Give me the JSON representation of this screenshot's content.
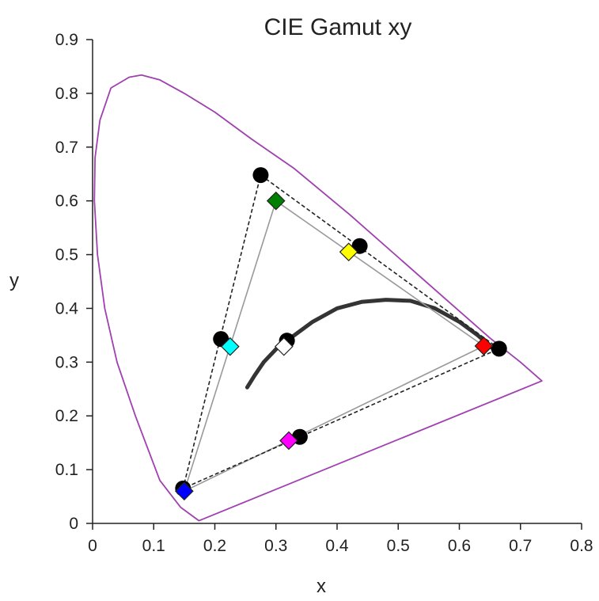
{
  "chart_data": {
    "type": "scatter",
    "title": "CIE Gamut xy",
    "xlabel": "x",
    "ylabel": "y",
    "xlim": [
      0,
      0.8
    ],
    "ylim": [
      0,
      0.9
    ],
    "x_ticks": [
      "0",
      "0.1",
      "0.2",
      "0.3",
      "0.4",
      "0.5",
      "0.6",
      "0.7",
      "0.8"
    ],
    "y_ticks": [
      "0",
      "0.1",
      "0.2",
      "0.3",
      "0.4",
      "0.5",
      "0.6",
      "0.7",
      "0.8",
      "0.9"
    ],
    "grid": false,
    "legend": "none",
    "spectral_locus": {
      "color": "#a040b0",
      "x": [
        0.174,
        0.144,
        0.11,
        0.07,
        0.04,
        0.02,
        0.008,
        0.003,
        0.004,
        0.012,
        0.03,
        0.06,
        0.08,
        0.11,
        0.15,
        0.2,
        0.26,
        0.33,
        0.42,
        0.5,
        0.58,
        0.65,
        0.7,
        0.735
      ],
      "y": [
        0.005,
        0.03,
        0.08,
        0.2,
        0.3,
        0.4,
        0.5,
        0.6,
        0.68,
        0.75,
        0.81,
        0.83,
        0.834,
        0.825,
        0.8,
        0.765,
        0.715,
        0.66,
        0.575,
        0.495,
        0.415,
        0.345,
        0.3,
        0.265
      ]
    },
    "planckian_locus": {
      "color": "#111111",
      "x": [
        0.253,
        0.265,
        0.28,
        0.305,
        0.33,
        0.36,
        0.4,
        0.44,
        0.48,
        0.52,
        0.56,
        0.6,
        0.63,
        0.655
      ],
      "y": [
        0.253,
        0.275,
        0.3,
        0.33,
        0.35,
        0.375,
        0.4,
        0.412,
        0.416,
        0.414,
        0.4,
        0.375,
        0.35,
        0.325
      ]
    },
    "gamut_a": {
      "style": "dashed",
      "color": "#222222",
      "vertices": [
        {
          "x": 0.275,
          "y": 0.648
        },
        {
          "x": 0.665,
          "y": 0.325
        },
        {
          "x": 0.148,
          "y": 0.065
        }
      ],
      "points": [
        {
          "x": 0.275,
          "y": 0.648
        },
        {
          "x": 0.437,
          "y": 0.516
        },
        {
          "x": 0.665,
          "y": 0.325
        },
        {
          "x": 0.339,
          "y": 0.161
        },
        {
          "x": 0.148,
          "y": 0.065
        },
        {
          "x": 0.21,
          "y": 0.343
        },
        {
          "x": 0.318,
          "y": 0.34
        }
      ],
      "marker_color": "#000000"
    },
    "gamut_b": {
      "style": "solid",
      "color": "#999999",
      "vertices": [
        {
          "x": 0.3,
          "y": 0.6
        },
        {
          "x": 0.64,
          "y": 0.33
        },
        {
          "x": 0.15,
          "y": 0.06
        }
      ],
      "points": [
        {
          "x": 0.3,
          "y": 0.6,
          "color": "#008000"
        },
        {
          "x": 0.419,
          "y": 0.505,
          "color": "#ffff00"
        },
        {
          "x": 0.64,
          "y": 0.33,
          "color": "#ff0000"
        },
        {
          "x": 0.321,
          "y": 0.154,
          "color": "#ff00ff"
        },
        {
          "x": 0.15,
          "y": 0.06,
          "color": "#0000ff"
        },
        {
          "x": 0.225,
          "y": 0.329,
          "color": "#00ffff"
        },
        {
          "x": 0.313,
          "y": 0.329,
          "color": "#ffffff"
        }
      ]
    }
  }
}
